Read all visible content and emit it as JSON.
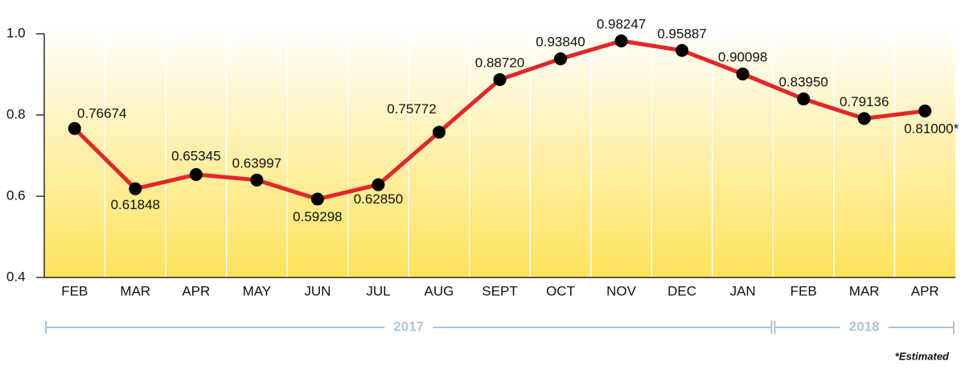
{
  "chart_data": {
    "type": "line",
    "categories": [
      "FEB",
      "MAR",
      "APR",
      "MAY",
      "JUN",
      "JUL",
      "AUG",
      "SEPT",
      "OCT",
      "NOV",
      "DEC",
      "JAN",
      "FEB",
      "MAR",
      "APR"
    ],
    "values": [
      0.76674,
      0.61848,
      0.65345,
      0.63997,
      0.59298,
      0.6285,
      0.75772,
      0.8872,
      0.9384,
      0.98247,
      0.95887,
      0.90098,
      0.8395,
      0.79136,
      0.81
    ],
    "value_labels": [
      "0.76674",
      "0.61848",
      "0.65345",
      "0.63997",
      "0.59298",
      "0.62850",
      "0.75772",
      "0.88720",
      "0.93840",
      "0.98247",
      "0.95887",
      "0.90098",
      "0.83950",
      "0.79136",
      "0.81000*"
    ],
    "color": "#e52528",
    "ylim": [
      0.4,
      1.0
    ],
    "yticks": [
      0.4,
      0.6,
      0.8,
      {
        "value": 1.0,
        "label": "1.0"
      }
    ],
    "year_groups": [
      {
        "label": "2017",
        "span": 12
      },
      {
        "label": "2018",
        "span": 3
      }
    ],
    "footnote": "*Estimated"
  }
}
